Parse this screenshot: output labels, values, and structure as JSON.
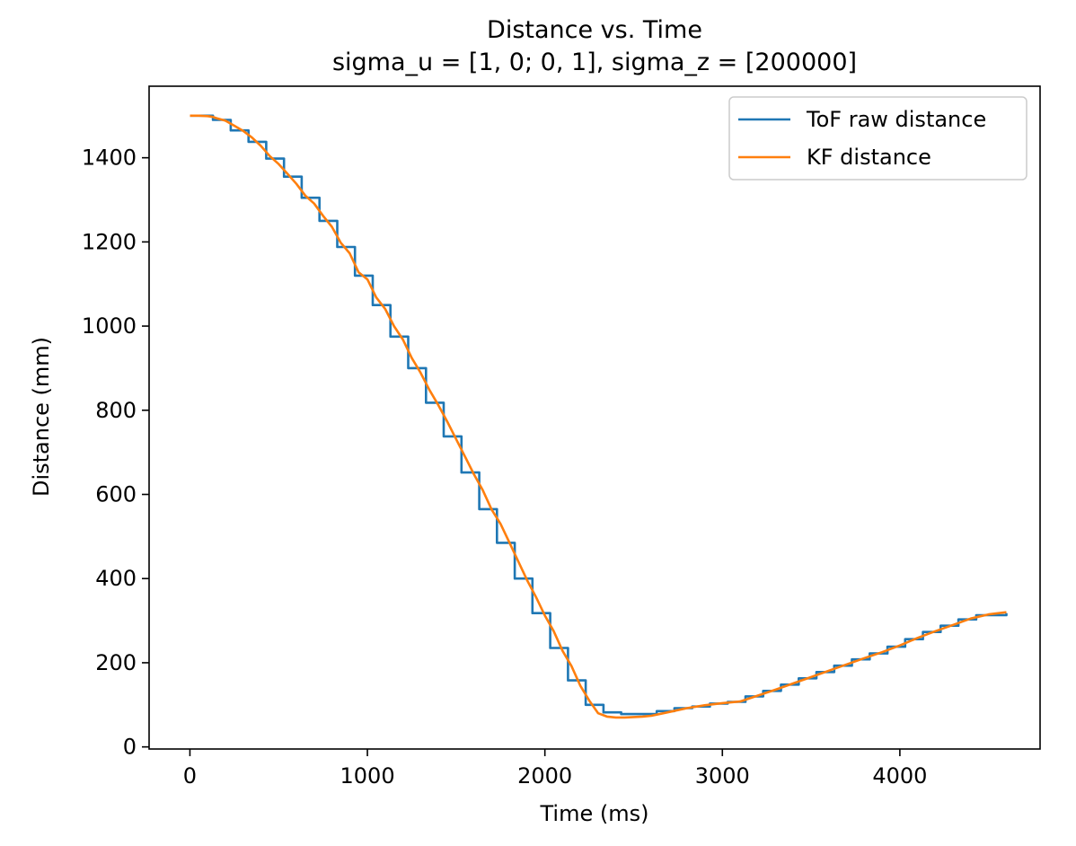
{
  "chart_data": {
    "type": "line",
    "title": "Distance vs. Time",
    "subtitle": "sigma_u = [1, 0; 0, 1], sigma_z = [200000]",
    "xlabel": "Time (ms)",
    "ylabel": "Distance (mm)",
    "xlim": [
      -230,
      4790
    ],
    "ylim": [
      -5,
      1570
    ],
    "xticks": [
      0,
      1000,
      2000,
      3000,
      4000
    ],
    "yticks": [
      0,
      200,
      400,
      600,
      800,
      1000,
      1200,
      1400
    ],
    "grid": false,
    "legend_position": "top-right",
    "series": [
      {
        "name": "ToF raw distance",
        "color": "#1f77b4",
        "style": "step",
        "x": [
          0,
          130,
          230,
          330,
          430,
          530,
          630,
          730,
          830,
          930,
          1030,
          1130,
          1230,
          1330,
          1430,
          1530,
          1630,
          1730,
          1830,
          1930,
          2030,
          2130,
          2230,
          2330,
          2430,
          2530,
          2630,
          2730,
          2830,
          2930,
          3030,
          3130,
          3230,
          3330,
          3430,
          3530,
          3630,
          3730,
          3830,
          3930,
          4030,
          4130,
          4230,
          4330,
          4430,
          4600
        ],
        "y": [
          1500,
          1490,
          1465,
          1438,
          1398,
          1355,
          1305,
          1250,
          1188,
          1120,
          1050,
          975,
          900,
          818,
          738,
          652,
          565,
          485,
          400,
          318,
          235,
          158,
          100,
          82,
          78,
          78,
          85,
          92,
          96,
          103,
          107,
          120,
          133,
          148,
          163,
          178,
          193,
          208,
          222,
          238,
          256,
          273,
          288,
          303,
          313,
          318
        ]
      },
      {
        "name": "KF distance",
        "color": "#ff7f0e",
        "style": "line",
        "x": [
          0,
          50,
          100,
          130,
          150,
          200,
          250,
          300,
          350,
          400,
          450,
          500,
          550,
          600,
          650,
          700,
          750,
          800,
          850,
          900,
          950,
          1000,
          1050,
          1100,
          1150,
          1200,
          1250,
          1300,
          1350,
          1400,
          1450,
          1500,
          1550,
          1600,
          1650,
          1700,
          1750,
          1800,
          1850,
          1900,
          1950,
          2000,
          2050,
          2100,
          2150,
          2200,
          2250,
          2300,
          2350,
          2400,
          2450,
          2500,
          2550,
          2600,
          2700,
          2800,
          2900,
          3000,
          3100,
          3200,
          3300,
          3400,
          3500,
          3600,
          3700,
          3800,
          3900,
          4000,
          4100,
          4200,
          4300,
          4400,
          4500,
          4600
        ],
        "y": [
          1500,
          1500,
          1499,
          1497,
          1494,
          1488,
          1476,
          1464,
          1448,
          1428,
          1404,
          1385,
          1362,
          1338,
          1310,
          1291,
          1262,
          1236,
          1198,
          1173,
          1128,
          1111,
          1068,
          1041,
          1000,
          968,
          924,
          889,
          848,
          812,
          773,
          731,
          690,
          648,
          610,
          564,
          530,
          486,
          441,
          396,
          356,
          312,
          275,
          228,
          192,
          145,
          110,
          80,
          72,
          70,
          70,
          71,
          72,
          74,
          83,
          92,
          99,
          104,
          108,
          122,
          136,
          151,
          166,
          181,
          196,
          211,
          225,
          241,
          259,
          275,
          290,
          305,
          315,
          320
        ]
      }
    ]
  }
}
